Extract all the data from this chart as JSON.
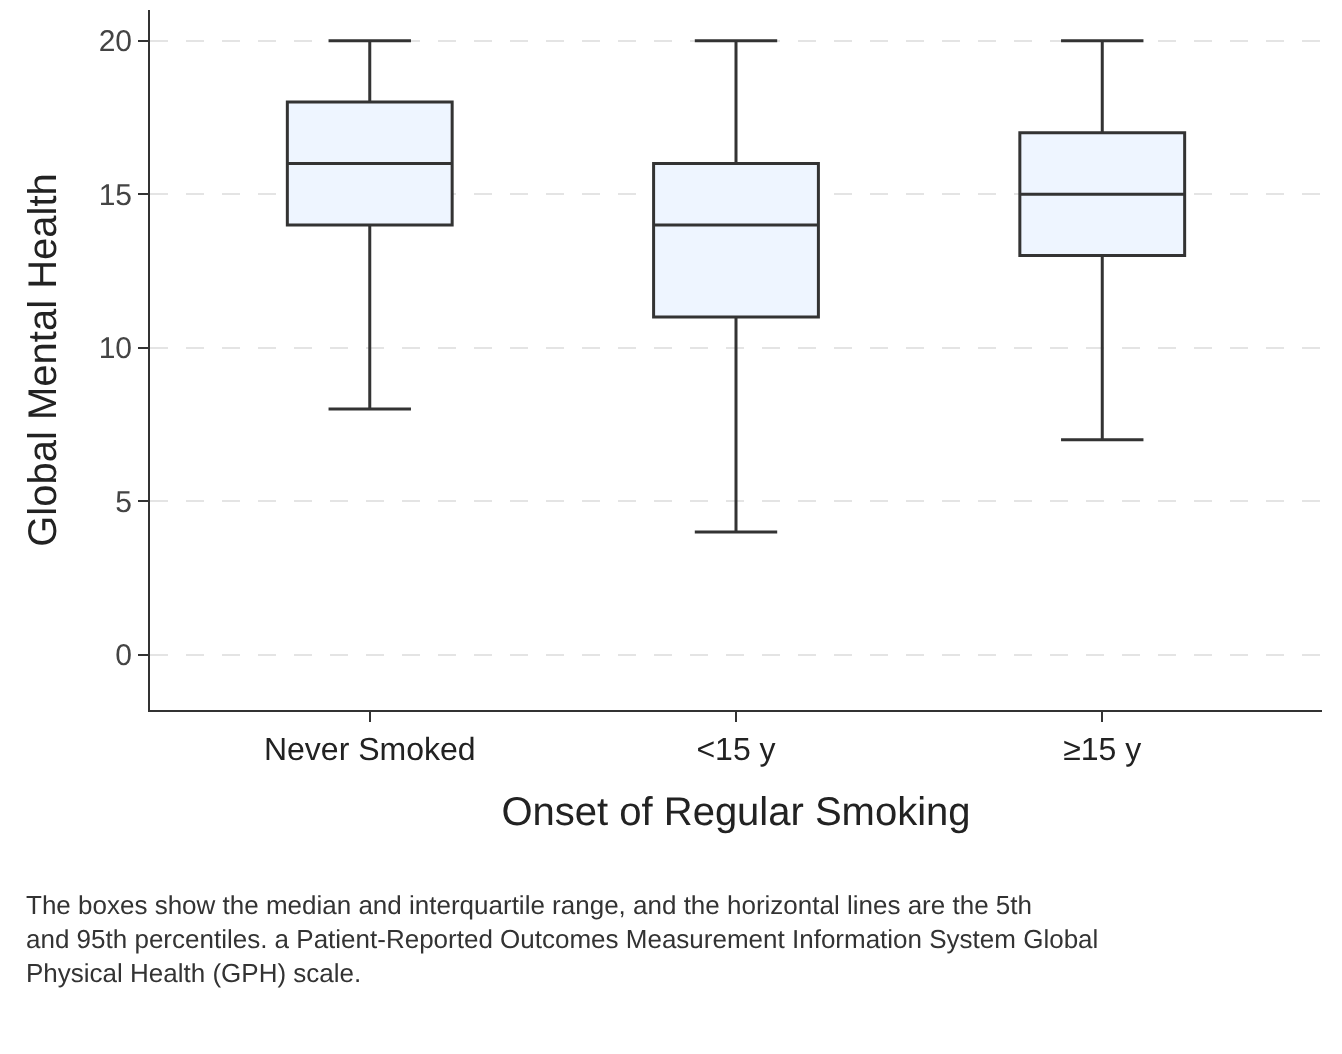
{
  "chart_data": {
    "type": "box",
    "xlabel": "Onset of Regular Smoking",
    "ylabel": "Global Mental Health",
    "categories": [
      "Never Smoked",
      "<15 y",
      "≥15 y"
    ],
    "boxes": [
      {
        "low": 8,
        "q1": 14,
        "median": 16,
        "q3": 18,
        "high": 20
      },
      {
        "low": 4,
        "q1": 11,
        "median": 14,
        "q3": 16,
        "high": 20
      },
      {
        "low": 7,
        "q1": 13,
        "median": 15,
        "q3": 17,
        "high": 20
      }
    ],
    "color": "#eef5ff",
    "ylim": [
      -1.8,
      21
    ],
    "yticks": [
      0,
      5,
      10,
      15,
      20
    ],
    "grid": "y",
    "legend": false,
    "annotations": [
      "The boxes show the median and interquartile range, and the horizontal lines are the 5th and 95th percentiles. a Patient-Reported Outcomes Measurement Information System Global Physical Health (GPH) scale."
    ]
  }
}
